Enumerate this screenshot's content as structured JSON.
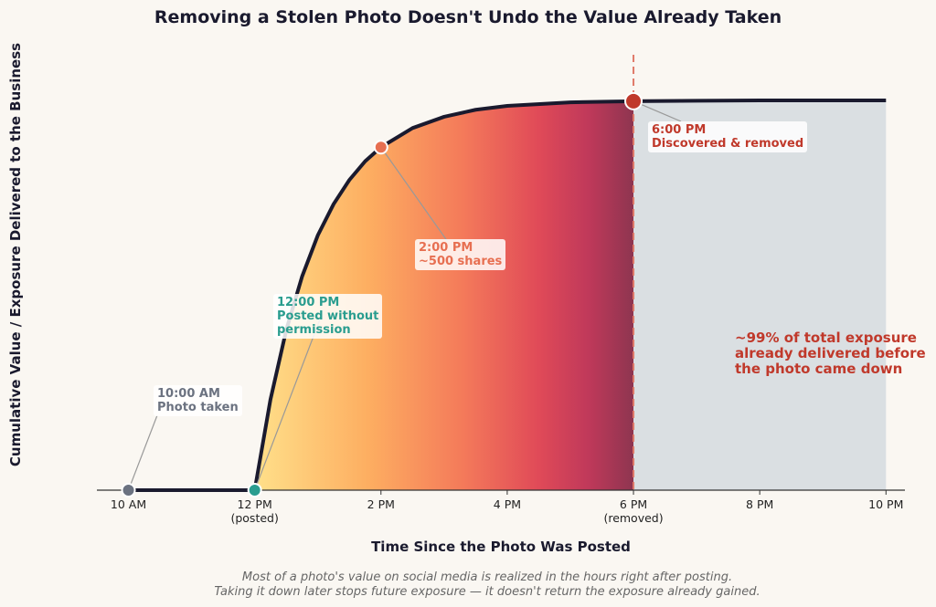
{
  "chart_data": {
    "type": "line",
    "title": "Removing a Stolen Photo Doesn't Undo the Value Already Taken",
    "x_label": "Time Since the Photo Was Posted",
    "y_label": "Cumulative Value / Exposure Delivered to the Business",
    "caption": "Most of a photo's value on social media is realized in the hours right after posting.\nTaking it down later stops future exposure — it doesn't return the exposure already gained.",
    "x": [
      10,
      11,
      12,
      12.25,
      12.5,
      12.75,
      13,
      13.25,
      13.5,
      13.75,
      14,
      14.5,
      15,
      15.5,
      16,
      17,
      18,
      19,
      20,
      21,
      22
    ],
    "series": [
      {
        "color": "#1a1a2e",
        "values": [
          0,
          0,
          0,
          23.3,
          41.1,
          54.8,
          65.4,
          73.4,
          79.6,
          84.4,
          88.0,
          92.9,
          95.8,
          97.6,
          98.6,
          99.5,
          99.8,
          99.9,
          100,
          100,
          100
        ]
      }
    ],
    "xlim": [
      9.5,
      22.3
    ],
    "ylim": [
      0,
      116
    ],
    "xticks": [
      {
        "value": 10,
        "label": "10 AM"
      },
      {
        "value": 12,
        "label": "12 PM\n(posted)"
      },
      {
        "value": 14,
        "label": "2 PM"
      },
      {
        "value": 16,
        "label": "4 PM"
      },
      {
        "value": 18,
        "label": "6 PM\n(removed)"
      },
      {
        "value": 20,
        "label": "8 PM"
      },
      {
        "value": 22,
        "label": "10 PM"
      }
    ],
    "removed_at": 18,
    "markers": [
      {
        "label": "10:00 AM\nPhoto taken",
        "x": 10,
        "y": 0,
        "color": "#6b7280"
      },
      {
        "label": "12:00 PM\nPosted without\npermission",
        "x": 12,
        "y": 0,
        "color": "#2a9d8f"
      },
      {
        "label": "2:00 PM\n~500 shares",
        "x": 14,
        "y": 88.0,
        "color": "#e76f51"
      },
      {
        "label": "6:00 PM\nDiscovered & removed",
        "x": 18,
        "y": 99.8,
        "color": "#c0392b"
      }
    ],
    "note": "~99% of total exposure\nalready delivered before\nthe photo came down"
  }
}
